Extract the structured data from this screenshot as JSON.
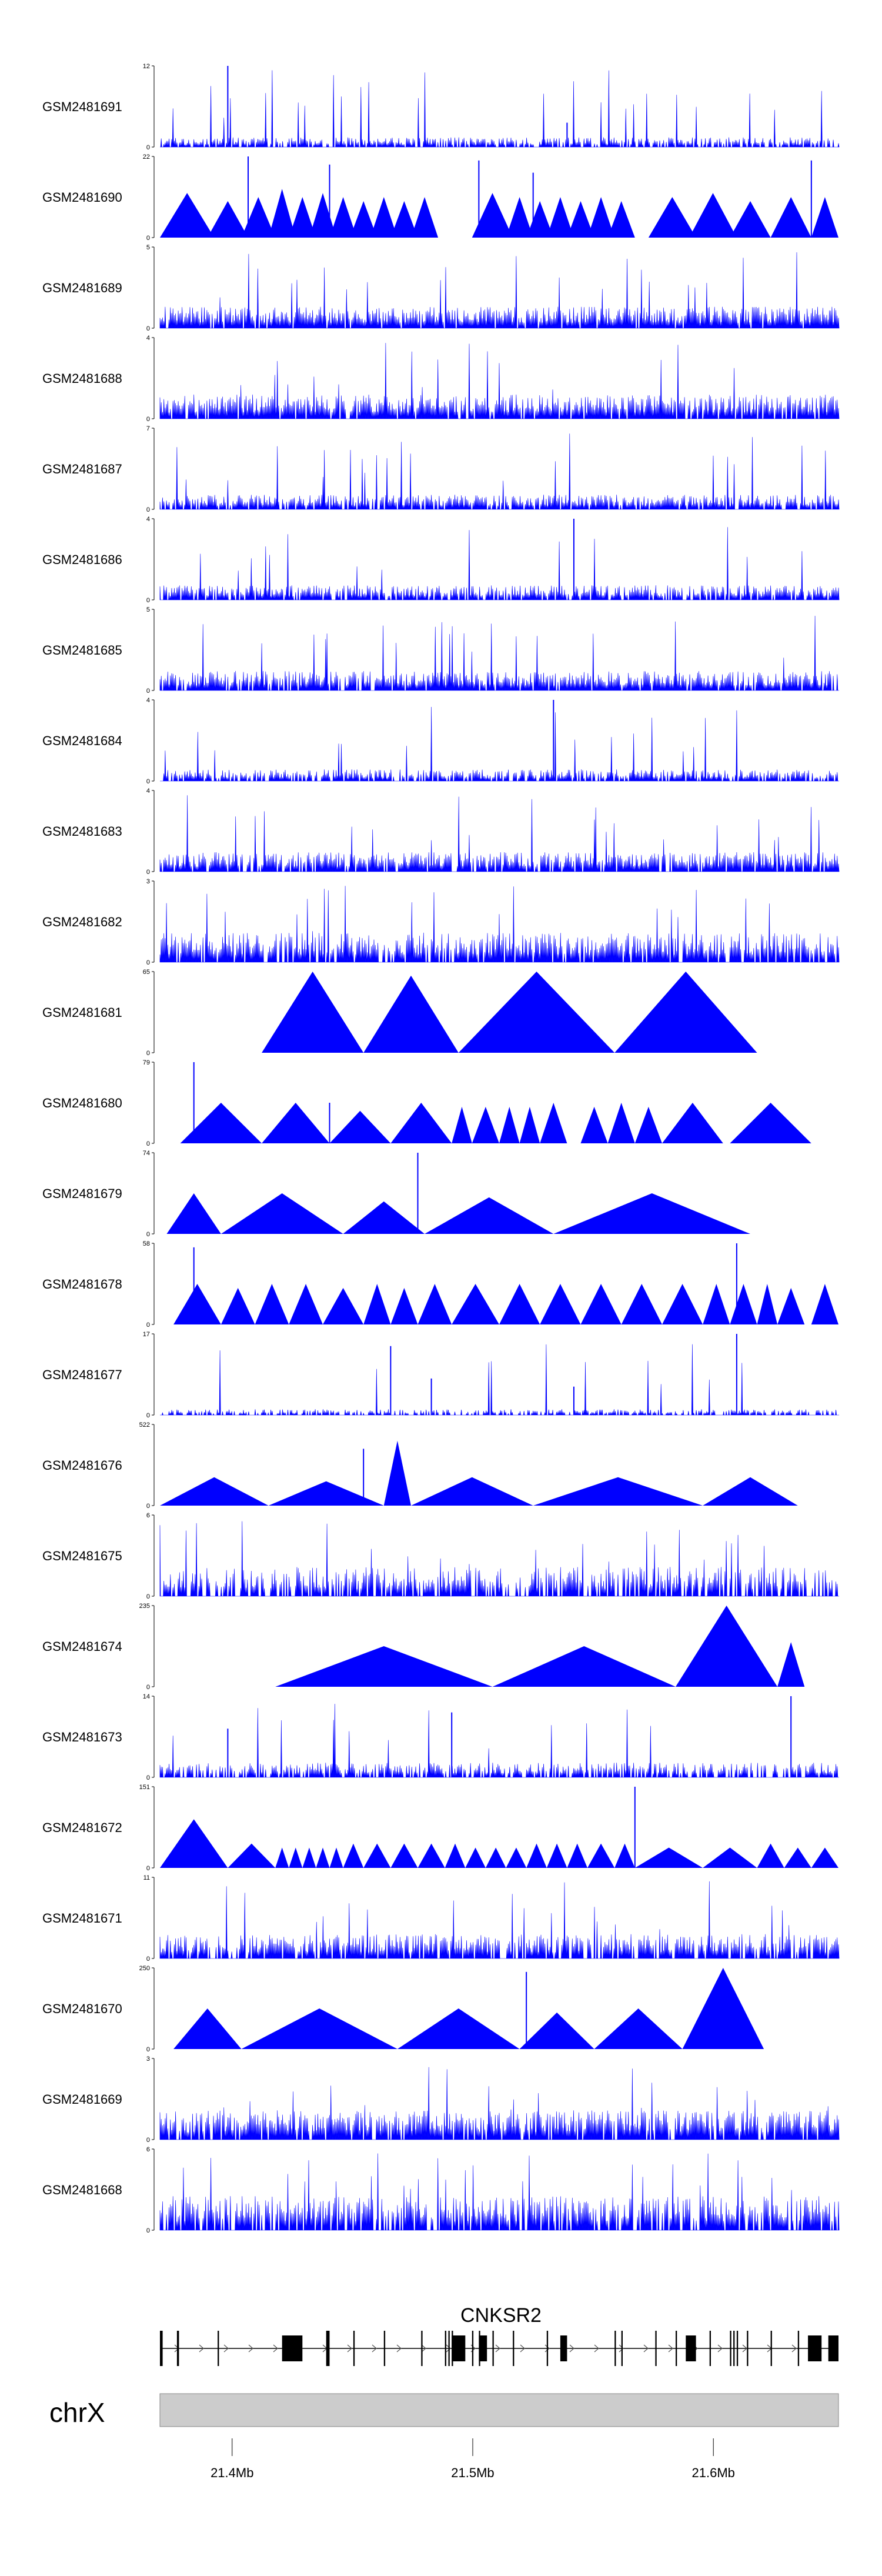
{
  "chart_data": {
    "type": "area",
    "title": "",
    "fill_color": "#0000FF",
    "tracks": [
      {
        "name": "GSM2481691",
        "ymax": 12,
        "ymin": 0,
        "pattern": "dense",
        "baseline": 0.1,
        "density": 0.75,
        "spikes": [
          [
            0.1,
            1.0
          ],
          [
            0.6,
            0.3
          ]
        ],
        "peaks": []
      },
      {
        "name": "GSM2481690",
        "ymax": 22,
        "ymin": 0,
        "pattern": "triangles",
        "peaks": [
          [
            0.0,
            0.08,
            0.55
          ],
          [
            0.07,
            0.13,
            0.45
          ],
          [
            0.12,
            0.17,
            0.5
          ],
          [
            0.16,
            0.2,
            0.6
          ],
          [
            0.19,
            0.23,
            0.5
          ],
          [
            0.22,
            0.26,
            0.55
          ],
          [
            0.25,
            0.29,
            0.5
          ],
          [
            0.28,
            0.32,
            0.45
          ],
          [
            0.31,
            0.35,
            0.5
          ],
          [
            0.34,
            0.38,
            0.45
          ],
          [
            0.37,
            0.41,
            0.5
          ],
          [
            0.46,
            0.52,
            0.55
          ],
          [
            0.51,
            0.55,
            0.5
          ],
          [
            0.54,
            0.58,
            0.45
          ],
          [
            0.57,
            0.61,
            0.5
          ],
          [
            0.6,
            0.64,
            0.45
          ],
          [
            0.63,
            0.67,
            0.5
          ],
          [
            0.66,
            0.7,
            0.45
          ],
          [
            0.72,
            0.79,
            0.5
          ],
          [
            0.78,
            0.85,
            0.55
          ],
          [
            0.84,
            0.9,
            0.45
          ],
          [
            0.9,
            0.96,
            0.5
          ],
          [
            0.96,
            1.0,
            0.5
          ]
        ],
        "spikes": [
          [
            0.13,
            1.0
          ],
          [
            0.25,
            0.9
          ],
          [
            0.47,
            0.95
          ],
          [
            0.55,
            0.8
          ],
          [
            0.96,
            0.95
          ]
        ]
      },
      {
        "name": "GSM2481689",
        "ymax": 5,
        "ymin": 0,
        "pattern": "dense",
        "baseline": 0.22,
        "density": 0.95,
        "spikes": [],
        "peaks": []
      },
      {
        "name": "GSM2481688",
        "ymax": 4,
        "ymin": 0,
        "pattern": "dense",
        "baseline": 0.25,
        "density": 0.9,
        "spikes": [],
        "peaks": []
      },
      {
        "name": "GSM2481687",
        "ymax": 7,
        "ymin": 0,
        "pattern": "dense",
        "baseline": 0.15,
        "density": 0.85,
        "spikes": [],
        "peaks": []
      },
      {
        "name": "GSM2481686",
        "ymax": 4,
        "ymin": 0,
        "pattern": "dense",
        "baseline": 0.15,
        "density": 0.85,
        "spikes": [
          [
            0.61,
            1.0
          ]
        ],
        "peaks": []
      },
      {
        "name": "GSM2481685",
        "ymax": 5,
        "ymin": 0,
        "pattern": "dense",
        "baseline": 0.2,
        "density": 0.9,
        "spikes": [],
        "peaks": []
      },
      {
        "name": "GSM2481684",
        "ymax": 4,
        "ymin": 0,
        "pattern": "dense",
        "baseline": 0.12,
        "density": 0.8,
        "spikes": [
          [
            0.58,
            1.0
          ]
        ],
        "peaks": []
      },
      {
        "name": "GSM2481683",
        "ymax": 4,
        "ymin": 0,
        "pattern": "dense",
        "baseline": 0.2,
        "density": 0.85,
        "spikes": [],
        "peaks": []
      },
      {
        "name": "GSM2481682",
        "ymax": 3,
        "ymin": 0,
        "pattern": "dense",
        "baseline": 0.3,
        "density": 0.85,
        "spikes": [],
        "peaks": []
      },
      {
        "name": "GSM2481681",
        "ymax": 65,
        "ymin": 0,
        "pattern": "triangles",
        "peaks": [
          [
            0.15,
            0.3,
            1.0
          ],
          [
            0.3,
            0.44,
            0.95
          ],
          [
            0.44,
            0.67,
            1.0
          ],
          [
            0.67,
            0.88,
            1.0
          ]
        ],
        "spikes": []
      },
      {
        "name": "GSM2481680",
        "ymax": 79,
        "ymin": 0,
        "pattern": "triangles",
        "peaks": [
          [
            0.03,
            0.15,
            0.5
          ],
          [
            0.15,
            0.25,
            0.5
          ],
          [
            0.25,
            0.34,
            0.4
          ],
          [
            0.34,
            0.43,
            0.5
          ],
          [
            0.43,
            0.46,
            0.45
          ],
          [
            0.46,
            0.5,
            0.45
          ],
          [
            0.5,
            0.53,
            0.45
          ],
          [
            0.53,
            0.56,
            0.45
          ],
          [
            0.56,
            0.6,
            0.5
          ],
          [
            0.62,
            0.66,
            0.45
          ],
          [
            0.66,
            0.7,
            0.5
          ],
          [
            0.7,
            0.74,
            0.45
          ],
          [
            0.74,
            0.83,
            0.5
          ],
          [
            0.84,
            0.96,
            0.5
          ]
        ],
        "spikes": [
          [
            0.05,
            1.0
          ],
          [
            0.25,
            0.5
          ]
        ]
      },
      {
        "name": "GSM2481679",
        "ymax": 74,
        "ymin": 0,
        "pattern": "triangles",
        "peaks": [
          [
            0.01,
            0.09,
            0.5
          ],
          [
            0.09,
            0.27,
            0.5
          ],
          [
            0.27,
            0.39,
            0.4
          ],
          [
            0.39,
            0.58,
            0.45
          ],
          [
            0.58,
            0.87,
            0.5
          ]
        ],
        "spikes": [
          [
            0.38,
            1.0
          ]
        ]
      },
      {
        "name": "GSM2481678",
        "ymax": 58,
        "ymin": 0,
        "pattern": "triangles",
        "peaks": [
          [
            0.02,
            0.09,
            0.5
          ],
          [
            0.09,
            0.14,
            0.45
          ],
          [
            0.14,
            0.19,
            0.5
          ],
          [
            0.19,
            0.24,
            0.5
          ],
          [
            0.24,
            0.3,
            0.45
          ],
          [
            0.3,
            0.34,
            0.5
          ],
          [
            0.34,
            0.38,
            0.45
          ],
          [
            0.38,
            0.43,
            0.5
          ],
          [
            0.43,
            0.5,
            0.5
          ],
          [
            0.5,
            0.56,
            0.5
          ],
          [
            0.56,
            0.62,
            0.5
          ],
          [
            0.62,
            0.68,
            0.5
          ],
          [
            0.68,
            0.74,
            0.5
          ],
          [
            0.74,
            0.8,
            0.5
          ],
          [
            0.8,
            0.84,
            0.5
          ],
          [
            0.84,
            0.88,
            0.5
          ],
          [
            0.88,
            0.91,
            0.5
          ],
          [
            0.91,
            0.95,
            0.45
          ],
          [
            0.96,
            1.0,
            0.5
          ]
        ],
        "spikes": [
          [
            0.05,
            0.95
          ],
          [
            0.85,
            1.0
          ]
        ]
      },
      {
        "name": "GSM2481677",
        "ymax": 17,
        "ymin": 0,
        "pattern": "dense",
        "baseline": 0.06,
        "density": 0.6,
        "spikes": [
          [
            0.34,
            0.85
          ],
          [
            0.4,
            0.45
          ],
          [
            0.61,
            0.35
          ],
          [
            0.85,
            1.0
          ]
        ],
        "peaks": []
      },
      {
        "name": "GSM2481676",
        "ymax": 522,
        "ymin": 0,
        "pattern": "triangles",
        "peaks": [
          [
            0.0,
            0.16,
            0.35
          ],
          [
            0.16,
            0.33,
            0.3
          ],
          [
            0.33,
            0.37,
            0.8
          ],
          [
            0.37,
            0.55,
            0.35
          ],
          [
            0.55,
            0.8,
            0.35
          ],
          [
            0.8,
            0.94,
            0.35
          ]
        ],
        "spikes": [
          [
            0.3,
            0.7
          ]
        ]
      },
      {
        "name": "GSM2481675",
        "ymax": 6,
        "ymin": 0,
        "pattern": "dense",
        "baseline": 0.3,
        "density": 0.7,
        "spikes": [],
        "peaks": []
      },
      {
        "name": "GSM2481674",
        "ymax": 235,
        "ymin": 0,
        "pattern": "triangles",
        "peaks": [
          [
            0.17,
            0.49,
            0.5
          ],
          [
            0.49,
            0.76,
            0.5
          ],
          [
            0.76,
            0.91,
            1.0
          ],
          [
            0.91,
            0.95,
            0.55
          ]
        ],
        "spikes": []
      },
      {
        "name": "GSM2481673",
        "ymax": 14,
        "ymin": 0,
        "pattern": "triangles-dense",
        "baseline": 0.15,
        "density": 0.7,
        "spikes": [
          [
            0.1,
            0.6
          ],
          [
            0.43,
            0.8
          ],
          [
            0.93,
            1.0
          ]
        ],
        "peaks": []
      },
      {
        "name": "GSM2481672",
        "ymax": 151,
        "ymin": 0,
        "pattern": "triangles",
        "peaks": [
          [
            0.0,
            0.1,
            0.6
          ],
          [
            0.1,
            0.17,
            0.3
          ],
          [
            0.17,
            0.19,
            0.25
          ],
          [
            0.19,
            0.21,
            0.25
          ],
          [
            0.21,
            0.23,
            0.25
          ],
          [
            0.23,
            0.25,
            0.25
          ],
          [
            0.25,
            0.27,
            0.25
          ],
          [
            0.27,
            0.3,
            0.3
          ],
          [
            0.3,
            0.34,
            0.3
          ],
          [
            0.34,
            0.38,
            0.3
          ],
          [
            0.38,
            0.42,
            0.3
          ],
          [
            0.42,
            0.45,
            0.3
          ],
          [
            0.45,
            0.48,
            0.25
          ],
          [
            0.48,
            0.51,
            0.25
          ],
          [
            0.51,
            0.54,
            0.25
          ],
          [
            0.54,
            0.57,
            0.3
          ],
          [
            0.57,
            0.6,
            0.3
          ],
          [
            0.6,
            0.63,
            0.3
          ],
          [
            0.63,
            0.67,
            0.3
          ],
          [
            0.67,
            0.7,
            0.3
          ],
          [
            0.7,
            0.8,
            0.25
          ],
          [
            0.8,
            0.88,
            0.25
          ],
          [
            0.88,
            0.92,
            0.3
          ],
          [
            0.92,
            0.96,
            0.25
          ],
          [
            0.96,
            1.0,
            0.25
          ]
        ],
        "spikes": [
          [
            0.7,
            1.0
          ]
        ]
      },
      {
        "name": "GSM2481671",
        "ymax": 11,
        "ymin": 0,
        "pattern": "dense",
        "baseline": 0.25,
        "density": 0.8,
        "spikes": [],
        "peaks": []
      },
      {
        "name": "GSM2481670",
        "ymax": 250,
        "ymin": 0,
        "pattern": "triangles",
        "peaks": [
          [
            0.02,
            0.12,
            0.5
          ],
          [
            0.12,
            0.35,
            0.5
          ],
          [
            0.35,
            0.53,
            0.5
          ],
          [
            0.53,
            0.64,
            0.45
          ],
          [
            0.64,
            0.77,
            0.5
          ],
          [
            0.77,
            0.89,
            1.0
          ]
        ],
        "spikes": [
          [
            0.54,
            0.95
          ]
        ]
      },
      {
        "name": "GSM2481669",
        "ymax": 3,
        "ymin": 0,
        "pattern": "dense",
        "baseline": 0.3,
        "density": 0.85,
        "spikes": [],
        "peaks": []
      },
      {
        "name": "GSM2481668",
        "ymax": 6,
        "ymin": 0,
        "pattern": "dense",
        "baseline": 0.35,
        "density": 0.8,
        "spikes": [],
        "peaks": []
      }
    ],
    "gene": {
      "name": "CNKSR2",
      "strand": "+",
      "exons": [
        [
          0.0,
          0.004
        ],
        [
          0.025,
          0.028
        ],
        [
          0.085,
          0.087
        ],
        [
          0.18,
          0.21
        ],
        [
          0.245,
          0.25
        ],
        [
          0.285,
          0.287
        ],
        [
          0.33,
          0.332
        ],
        [
          0.385,
          0.387
        ],
        [
          0.42,
          0.422
        ],
        [
          0.425,
          0.427
        ],
        [
          0.43,
          0.432
        ],
        [
          0.43,
          0.45
        ],
        [
          0.46,
          0.462
        ],
        [
          0.47,
          0.472
        ],
        [
          0.47,
          0.482
        ],
        [
          0.49,
          0.492
        ],
        [
          0.52,
          0.522
        ],
        [
          0.57,
          0.572
        ],
        [
          0.59,
          0.6
        ],
        [
          0.67,
          0.672
        ],
        [
          0.68,
          0.682
        ],
        [
          0.73,
          0.732
        ],
        [
          0.76,
          0.762
        ],
        [
          0.775,
          0.79
        ],
        [
          0.81,
          0.812
        ],
        [
          0.84,
          0.842
        ],
        [
          0.845,
          0.847
        ],
        [
          0.85,
          0.852
        ],
        [
          0.865,
          0.867
        ],
        [
          0.9,
          0.902
        ],
        [
          0.94,
          0.942
        ],
        [
          0.955,
          0.975
        ],
        [
          0.985,
          1.0
        ]
      ]
    },
    "chromosome": {
      "name": "chrX"
    },
    "xaxis": {
      "range": [
        21.37,
        21.652
      ],
      "ticks": [
        21.4,
        21.5,
        21.6
      ],
      "tick_labels": [
        "21.4Mb",
        "21.5Mb",
        "21.6Mb"
      ]
    }
  }
}
